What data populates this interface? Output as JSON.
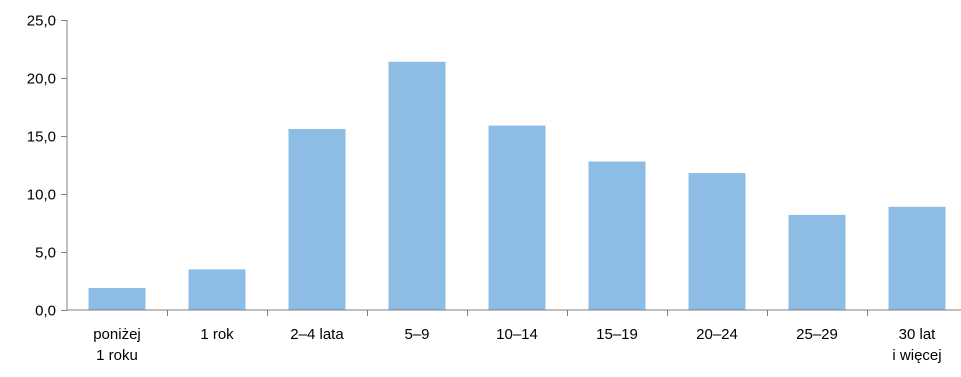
{
  "chart_data": {
    "type": "bar",
    "categories": [
      [
        "poniżej",
        "1 roku"
      ],
      [
        "1 rok"
      ],
      [
        "2–4 lata"
      ],
      [
        "5–9"
      ],
      [
        "10–14"
      ],
      [
        "15–19"
      ],
      [
        "20–24"
      ],
      [
        "25–29"
      ],
      [
        "30 lat",
        "i więcej"
      ]
    ],
    "values": [
      1.9,
      3.5,
      15.6,
      21.4,
      15.9,
      12.8,
      11.8,
      8.2,
      8.9
    ],
    "yticks": [
      "0,0",
      "5,0",
      "10,0",
      "15,0",
      "20,0",
      "25,0"
    ],
    "ylim": [
      0,
      25
    ],
    "grid": false,
    "legend": "none",
    "colors": {
      "bar": "#8dbde4",
      "axis": "#7f7f7f"
    }
  }
}
